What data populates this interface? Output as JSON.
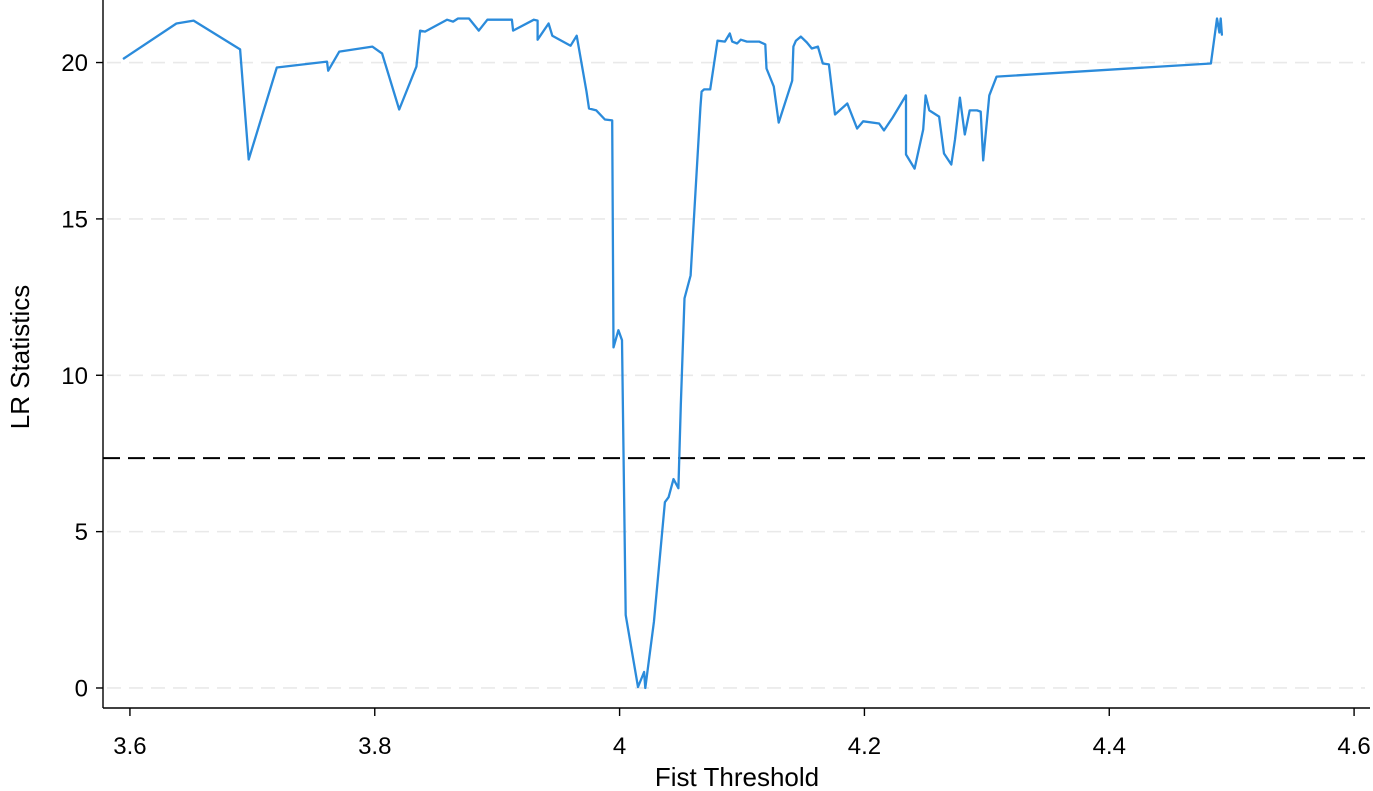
{
  "chart_data": {
    "type": "line",
    "xlabel": "Fist Threshold",
    "ylabel": "LR Statistics",
    "xlim": [
      3.578,
      4.613
    ],
    "ylim": [
      -0.64,
      22.0
    ],
    "x_ticks": [
      {
        "value": 3.6,
        "label": "3.6"
      },
      {
        "value": 3.8,
        "label": "3.8"
      },
      {
        "value": 4.0,
        "label": "4"
      },
      {
        "value": 4.2,
        "label": "4.2"
      },
      {
        "value": 4.4,
        "label": "4.4"
      },
      {
        "value": 4.6,
        "label": "4.6"
      }
    ],
    "y_ticks": [
      {
        "value": 0,
        "label": "0"
      },
      {
        "value": 5,
        "label": "5"
      },
      {
        "value": 10,
        "label": "10"
      },
      {
        "value": 15,
        "label": "15"
      },
      {
        "value": 20,
        "label": "20"
      }
    ],
    "grid": {
      "horizontal": true,
      "vertical": false,
      "style": "dashed",
      "color": "#e9e9e9"
    },
    "legend": "none",
    "axis_color": "#000000",
    "series": [
      {
        "color": "#2b8bdb",
        "x": [
          3.595,
          3.638,
          3.652,
          3.69,
          3.697,
          3.72,
          3.761,
          3.762,
          3.771,
          3.798,
          3.806,
          3.82,
          3.834,
          3.837,
          3.841,
          3.859,
          3.864,
          3.868,
          3.877,
          3.885,
          3.892,
          3.902,
          3.912,
          3.913,
          3.93,
          3.933,
          3.933,
          3.942,
          3.945,
          3.96,
          3.965,
          3.973,
          3.975,
          3.981,
          3.988,
          3.994,
          3.995,
          3.999,
          4.002,
          4.005,
          4.015,
          4.02,
          4.021,
          4.028,
          4.037,
          4.04,
          4.044,
          4.048,
          4.05,
          4.053,
          4.058,
          4.066,
          4.067,
          4.069,
          4.074,
          4.08,
          4.086,
          4.09,
          4.092,
          4.096,
          4.099,
          4.104,
          4.114,
          4.119,
          4.12,
          4.126,
          4.13,
          4.141,
          4.142,
          4.144,
          4.148,
          4.153,
          4.157,
          4.162,
          4.166,
          4.171,
          4.174,
          4.176,
          4.186,
          4.194,
          4.199,
          4.212,
          4.216,
          4.223,
          4.234,
          4.234,
          4.241,
          4.248,
          4.25,
          4.253,
          4.261,
          4.265,
          4.271,
          4.274,
          4.278,
          4.282,
          4.286,
          4.292,
          4.295,
          4.297,
          4.302,
          4.308,
          4.483,
          4.488,
          4.49,
          4.491,
          4.492
        ],
        "y": [
          20.13,
          21.25,
          21.34,
          20.42,
          16.9,
          19.84,
          20.03,
          19.74,
          20.35,
          20.51,
          20.29,
          18.5,
          19.87,
          21.02,
          20.99,
          21.37,
          21.31,
          21.41,
          21.41,
          21.02,
          21.37,
          21.37,
          21.37,
          21.02,
          21.37,
          21.34,
          20.73,
          21.25,
          20.86,
          20.54,
          20.86,
          19.07,
          18.53,
          18.47,
          18.18,
          18.15,
          10.89,
          11.44,
          11.12,
          2.33,
          0.03,
          0.51,
          0.0,
          2.11,
          5.94,
          6.1,
          6.68,
          6.39,
          9.04,
          12.46,
          13.19,
          18.56,
          19.07,
          19.14,
          19.14,
          20.7,
          20.67,
          20.93,
          20.67,
          20.61,
          20.73,
          20.67,
          20.67,
          20.58,
          19.81,
          19.23,
          18.08,
          19.42,
          20.51,
          20.7,
          20.83,
          20.64,
          20.45,
          20.51,
          19.97,
          19.94,
          18.95,
          18.34,
          18.69,
          17.89,
          18.12,
          18.05,
          17.83,
          18.24,
          18.95,
          17.06,
          16.61,
          17.86,
          18.95,
          18.47,
          18.27,
          17.09,
          16.74,
          17.54,
          18.88,
          17.7,
          18.47,
          18.47,
          18.43,
          16.87,
          18.95,
          19.55,
          19.97,
          21.41,
          20.96,
          21.41,
          20.89
        ]
      }
    ],
    "reference_lines": [
      {
        "orientation": "horizontal",
        "y": 7.35,
        "style": "dashed",
        "color": "#000000"
      }
    ]
  }
}
